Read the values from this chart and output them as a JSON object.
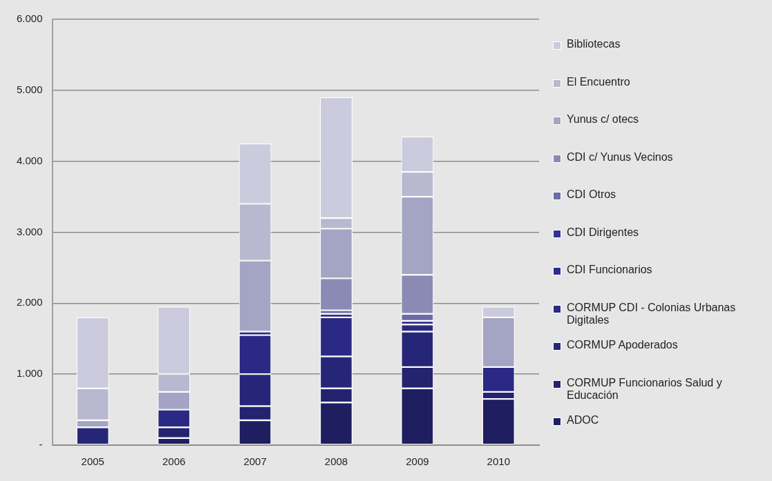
{
  "chart_data": {
    "type": "bar",
    "stacked": true,
    "categories": [
      "2005",
      "2006",
      "2007",
      "2008",
      "2009",
      "2010"
    ],
    "ylim": [
      0,
      6000
    ],
    "yticks": [
      {
        "value": 0,
        "label": "-"
      },
      {
        "value": 1000,
        "label": "1.000"
      },
      {
        "value": 2000,
        "label": "2.000"
      },
      {
        "value": 3000,
        "label": "3.000"
      },
      {
        "value": 4000,
        "label": "4.000"
      },
      {
        "value": 5000,
        "label": "5.000"
      },
      {
        "value": 6000,
        "label": "6.000"
      }
    ],
    "grid": "y",
    "legend": "right",
    "series": [
      {
        "name": "ADOC",
        "color": "#1e1e60",
        "values": [
          null,
          100,
          350,
          600,
          800,
          650
        ]
      },
      {
        "name": "CORMUP Funcionarios  Salud y Educación",
        "color": "#232370",
        "values": [
          null,
          150,
          200,
          200,
          300,
          100
        ]
      },
      {
        "name": "CORMUP Apoderados",
        "color": "#262678",
        "values": [
          250,
          null,
          450,
          450,
          500,
          null
        ]
      },
      {
        "name": "CORMUP CDI - Colonias Urbanas Digitales",
        "color": "#2a2a84",
        "values": [
          null,
          250,
          550,
          550,
          100,
          350
        ]
      },
      {
        "name": "CDI Funcionarios",
        "color": "#2d2d8c",
        "values": [
          null,
          null,
          50,
          50,
          50,
          null
        ]
      },
      {
        "name": "CDI Dirigentes",
        "color": "#32329a",
        "values": [
          null,
          null,
          null,
          null,
          null,
          null
        ]
      },
      {
        "name": "CDI Otros",
        "color": "#6b6ba8",
        "values": [
          null,
          null,
          null,
          50,
          100,
          null
        ]
      },
      {
        "name": "CDI c/ Yunus Vecinos",
        "color": "#8a8ab5",
        "values": [
          null,
          null,
          null,
          450,
          550,
          null
        ]
      },
      {
        "name": "Yunus c/ otecs",
        "color": "#a4a4c4",
        "values": [
          100,
          250,
          1000,
          700,
          1100,
          700
        ]
      },
      {
        "name": "El Encuentro",
        "color": "#b8b8d0",
        "values": [
          450,
          250,
          800,
          150,
          350,
          null
        ]
      },
      {
        "name": "Bibliotecas",
        "color": "#cbcbdd",
        "values": [
          1000,
          950,
          850,
          1700,
          500,
          150
        ]
      }
    ]
  }
}
